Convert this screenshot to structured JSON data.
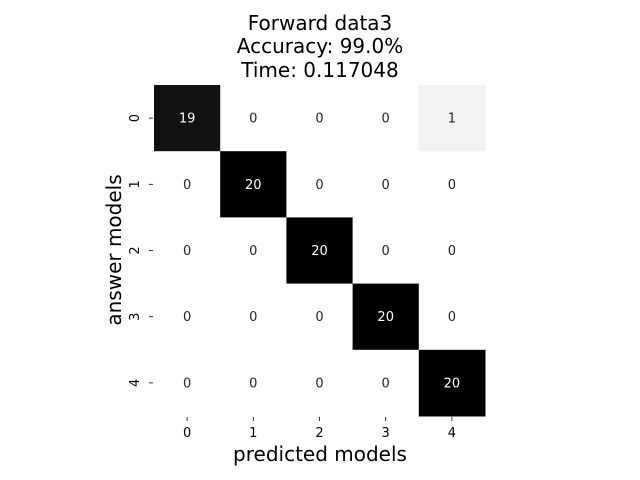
{
  "chart_data": {
    "type": "heatmap",
    "title_lines": [
      "Forward data3",
      "Accuracy: 99.0%",
      "Time: 0.117048"
    ],
    "xlabel": "predicted models",
    "ylabel": "answer models",
    "x_categories": [
      "0",
      "1",
      "2",
      "3",
      "4"
    ],
    "y_categories": [
      "0",
      "1",
      "2",
      "3",
      "4"
    ],
    "matrix": [
      [
        19,
        0,
        0,
        0,
        1
      ],
      [
        0,
        20,
        0,
        0,
        0
      ],
      [
        0,
        0,
        20,
        0,
        0
      ],
      [
        0,
        0,
        0,
        20,
        0
      ],
      [
        0,
        0,
        0,
        0,
        20
      ]
    ],
    "value_range": [
      0,
      20
    ],
    "colormap": "greys",
    "colorbar": false,
    "grid": false
  }
}
